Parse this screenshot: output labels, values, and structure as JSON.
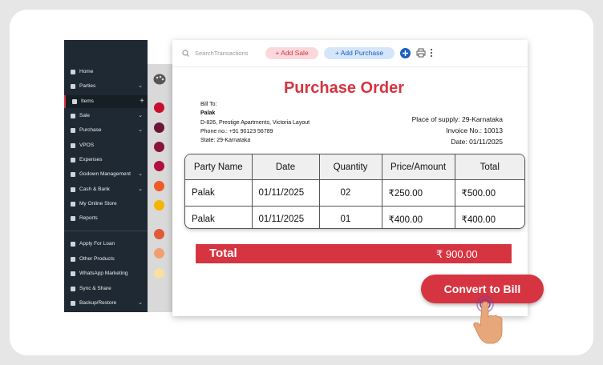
{
  "top_bar": {
    "search_placeholder": "SearchTransactions",
    "add_sale": "+ Add Sale",
    "add_purchase": "+ Add Purchase"
  },
  "sidebar": {
    "main_items": [
      "Home",
      "Parties",
      "Items",
      "Sale",
      "Purchase",
      "VPOS",
      "Expenses",
      "Godown Management",
      "Cash & Bank",
      "My Online Store",
      "Reports"
    ],
    "extra_items": [
      "Apply For Loan",
      "Other Products",
      "WhatsApp Marketing",
      "Sync & Share",
      "Backup/Restore"
    ]
  },
  "document": {
    "title": "Purchase Order",
    "bill_to_label": "Bill To:",
    "party_name": "Palak",
    "address": "D-826, Prestige Apartments, Victoria Layout",
    "phone": "Phone no.: +91 90123 56789",
    "state": "State: 29-Karnataka",
    "place_of_supply": "Place of supply: 29-Karnataka",
    "invoice_no": "Invoice No.: 10013",
    "date": "Date: 01/11/2025"
  },
  "table": {
    "header": [
      "Party Name",
      "Date",
      "Quantity",
      "Price/Amount",
      "Total"
    ],
    "rows": [
      [
        "Palak",
        "01/11/2025",
        "02",
        "₹250.00",
        "₹500.00"
      ],
      [
        "Palak",
        "01/11/2025",
        "01",
        "₹400.00",
        "₹400.00"
      ]
    ]
  },
  "total": {
    "label": "Total",
    "amount": "₹ 900.00"
  },
  "button": "Convert to Bill"
}
